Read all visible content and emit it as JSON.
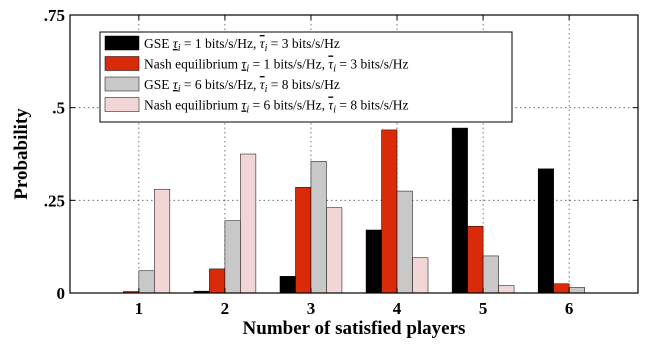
{
  "chart_data": {
    "type": "bar",
    "title": "",
    "xlabel": "Number of satisfied players",
    "ylabel": "Probability",
    "categories": [
      "1",
      "2",
      "3",
      "4",
      "5",
      "6"
    ],
    "xlim": [
      0.2,
      6.8
    ],
    "ylim": [
      0,
      0.75
    ],
    "yticks": [
      0,
      0.25,
      0.5,
      0.75
    ],
    "ytick_labels": [
      "0",
      ".25",
      ".5",
      ".75"
    ],
    "grid": true,
    "legend_position": "top-left",
    "series": [
      {
        "name": "GSE τi = 1 bits/s/Hz, τ̄i = 3 bits/s/Hz",
        "name_parts": {
          "pre": "GSE ",
          "mid": " = 1 bits/s/Hz, ",
          "post": " = 3 bits/s/Hz"
        },
        "color": "#000000",
        "values": [
          0.0,
          0.005,
          0.045,
          0.17,
          0.445,
          0.335
        ]
      },
      {
        "name": "Nash equilibrium τi = 1 bits/s/Hz, τ̄i = 3 bits/s/Hz",
        "name_parts": {
          "pre": "Nash equilibrium ",
          "mid": " = 1 bits/s/Hz, ",
          "post": " = 3 bits/s/Hz"
        },
        "color": "#d92b0a",
        "values": [
          0.004,
          0.065,
          0.285,
          0.44,
          0.18,
          0.025
        ]
      },
      {
        "name": "GSE τi = 6 bits/s/Hz, τ̄i = 8 bits/s/Hz",
        "name_parts": {
          "pre": "GSE ",
          "mid": " = 6 bits/s/Hz, ",
          "post": " = 8 bits/s/Hz"
        },
        "color": "#c8c8c8",
        "values": [
          0.06,
          0.195,
          0.355,
          0.275,
          0.1,
          0.015
        ]
      },
      {
        "name": "Nash equilibrium τi = 6 bits/s/Hz, τ̄i = 8 bits/s/Hz",
        "name_parts": {
          "pre": "Nash equilibrium ",
          "mid": " = 6 bits/s/Hz, ",
          "post": " = 8 bits/s/Hz"
        },
        "color": "#f2d6d6",
        "values": [
          0.28,
          0.375,
          0.23,
          0.095,
          0.02,
          0.0
        ]
      }
    ]
  }
}
